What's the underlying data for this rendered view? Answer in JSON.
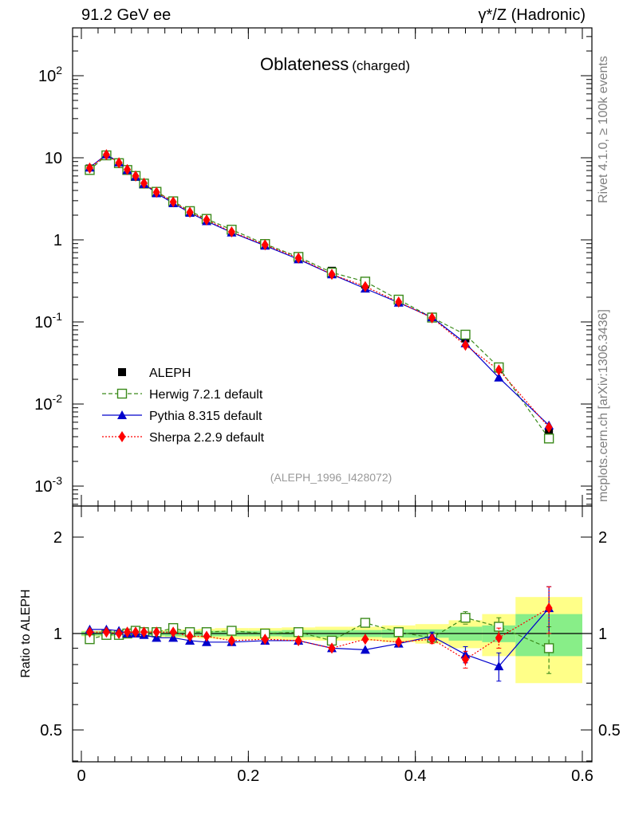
{
  "header": {
    "left": "91.2 GeV ee",
    "right": "γ*/Z (Hadronic)"
  },
  "side_labels": {
    "rivet": "Rivet 4.1.0, ≥ 100k events",
    "mcplots": "mcplots.cern.ch [arXiv:1306.3436]"
  },
  "chart_data": {
    "type": "line",
    "title": "Oblateness",
    "subtitle": "(charged)",
    "analysis": "(ALEPH_1996_I428072)",
    "xlabel": "",
    "ylabel_top": "",
    "ylabel_ratio": "Ratio to ALEPH",
    "xlim": [
      -0.015,
      0.6
    ],
    "ylim_top": [
      0.0007,
      400
    ],
    "ylim_ratio": [
      0.4,
      2.4
    ],
    "yscale_top": "log",
    "yscale_ratio": "log",
    "x_ticks": [
      {
        "v": 0,
        "label": "0"
      },
      {
        "v": 0.2,
        "label": "0.2"
      },
      {
        "v": 0.4,
        "label": "0.4"
      },
      {
        "v": 0.6,
        "label": "0.6"
      }
    ],
    "y_ticks_top": [
      {
        "v": 0.001,
        "base": "10",
        "exp": "-3"
      },
      {
        "v": 0.01,
        "base": "10",
        "exp": "-2"
      },
      {
        "v": 0.1,
        "base": "10",
        "exp": "-1"
      },
      {
        "v": 1,
        "base": "1",
        "exp": ""
      },
      {
        "v": 10,
        "base": "10",
        "exp": ""
      },
      {
        "v": 100,
        "base": "10",
        "exp": "2"
      }
    ],
    "y_ticks_ratio": [
      {
        "v": 0.5,
        "label": "0.5"
      },
      {
        "v": 1,
        "label": "1"
      },
      {
        "v": 2,
        "label": "2"
      }
    ],
    "legend_position": "lower-left",
    "x": [
      0.01,
      0.03,
      0.045,
      0.055,
      0.065,
      0.075,
      0.09,
      0.11,
      0.13,
      0.15,
      0.18,
      0.22,
      0.26,
      0.3,
      0.34,
      0.38,
      0.42,
      0.46,
      0.5,
      0.56
    ],
    "bin_edges": [
      0,
      0.02,
      0.04,
      0.05,
      0.06,
      0.07,
      0.08,
      0.1,
      0.12,
      0.14,
      0.16,
      0.2,
      0.24,
      0.28,
      0.32,
      0.36,
      0.4,
      0.44,
      0.48,
      0.52,
      0.6
    ],
    "band_stat": [
      0.015,
      0.015,
      0.015,
      0.015,
      0.015,
      0.015,
      0.015,
      0.02,
      0.02,
      0.02,
      0.02,
      0.02,
      0.025,
      0.025,
      0.025,
      0.03,
      0.03,
      0.05,
      0.06,
      0.15
    ],
    "band_total": [
      0.02,
      0.02,
      0.02,
      0.02,
      0.02,
      0.02,
      0.025,
      0.03,
      0.03,
      0.035,
      0.04,
      0.04,
      0.045,
      0.05,
      0.05,
      0.06,
      0.07,
      0.1,
      0.15,
      0.3
    ],
    "series": [
      {
        "name": "ALEPH",
        "style": "data",
        "color": "#000000",
        "values": [
          7.4,
          10.8,
          8.7,
          7.1,
          5.9,
          4.8,
          3.8,
          2.85,
          2.22,
          1.78,
          1.3,
          0.89,
          0.61,
          0.42,
          0.285,
          0.185,
          0.116,
          0.063,
          0.027,
          0.0045
        ],
        "ratio": [
          1,
          1,
          1,
          1,
          1,
          1,
          1,
          1,
          1,
          1,
          1,
          1,
          1,
          1,
          1,
          1,
          1,
          1,
          1,
          1
        ]
      },
      {
        "name": "Herwig 7.2.1 default",
        "style": "dashed",
        "marker": "open-square",
        "color": "#3a8a1a",
        "values": [
          7.1,
          10.7,
          8.6,
          7.1,
          6.0,
          4.85,
          3.85,
          2.95,
          2.24,
          1.8,
          1.33,
          0.89,
          0.62,
          0.4,
          0.31,
          0.187,
          0.113,
          0.07,
          0.028,
          0.0038
        ],
        "ratio": [
          0.96,
          0.99,
          0.99,
          1.0,
          1.02,
          1.01,
          1.01,
          1.04,
          1.01,
          1.01,
          1.02,
          1.0,
          1.01,
          0.95,
          1.08,
          1.01,
          0.97,
          1.12,
          1.05,
          0.9
        ],
        "ratio_err": [
          0,
          0,
          0,
          0,
          0,
          0,
          0,
          0,
          0,
          0,
          0,
          0,
          0,
          0,
          0,
          0,
          0.03,
          0.05,
          0.07,
          0.15
        ]
      },
      {
        "name": "Pythia 8.315 default",
        "style": "solid",
        "marker": "triangle",
        "color": "#0000cc",
        "values": [
          7.6,
          11.0,
          8.8,
          7.1,
          5.9,
          4.8,
          3.7,
          2.8,
          2.14,
          1.69,
          1.23,
          0.85,
          0.58,
          0.38,
          0.255,
          0.172,
          0.114,
          0.055,
          0.021,
          0.0055
        ],
        "ratio": [
          1.03,
          1.03,
          1.02,
          1.0,
          1.0,
          0.99,
          0.97,
          0.97,
          0.95,
          0.94,
          0.94,
          0.95,
          0.95,
          0.9,
          0.89,
          0.93,
          0.98,
          0.86,
          0.79,
          1.2
        ],
        "ratio_err": [
          0,
          0,
          0,
          0,
          0,
          0,
          0,
          0,
          0,
          0,
          0,
          0,
          0,
          0,
          0,
          0,
          0.03,
          0.05,
          0.08,
          0.2
        ]
      },
      {
        "name": "Sherpa 2.2.9 default",
        "style": "dotted",
        "marker": "diamond",
        "color": "#ff0000",
        "values": [
          7.5,
          10.9,
          8.7,
          7.2,
          6.0,
          4.9,
          3.8,
          2.9,
          2.17,
          1.75,
          1.25,
          0.87,
          0.6,
          0.38,
          0.27,
          0.175,
          0.112,
          0.052,
          0.026,
          0.0052
        ],
        "ratio": [
          1.01,
          1.01,
          1.0,
          1.01,
          1.01,
          1.01,
          1.01,
          1.01,
          0.98,
          0.98,
          0.95,
          0.96,
          0.95,
          0.9,
          0.96,
          0.94,
          0.96,
          0.83,
          0.97,
          1.2
        ],
        "ratio_err": [
          0,
          0,
          0,
          0,
          0,
          0,
          0,
          0,
          0,
          0,
          0,
          0,
          0,
          0,
          0,
          0,
          0.03,
          0.05,
          0.07,
          0.2
        ]
      }
    ]
  }
}
